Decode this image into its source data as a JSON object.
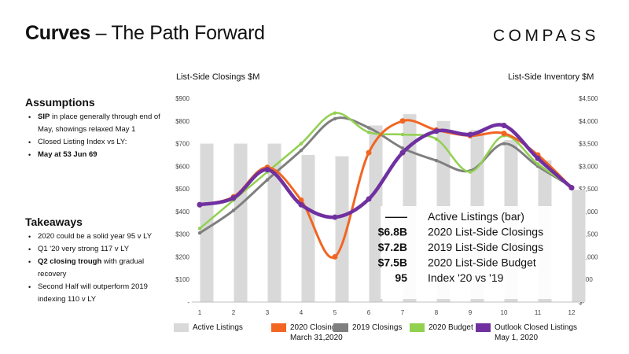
{
  "header": {
    "title_bold": "Curves",
    "title_rest": " – The Path Forward",
    "logo": "COMPASS"
  },
  "assumptions": {
    "heading": "Assumptions",
    "items": [
      {
        "bold": "SIP",
        "text": " in place generally through end of May, showings relaxed May 1"
      },
      {
        "bold": "",
        "text": "Closed Listing Index vs LY:"
      },
      {
        "bold": "May at 53 Jun 69",
        "text": ""
      }
    ]
  },
  "takeaways": {
    "heading": "Takeaways",
    "items": [
      {
        "bold": "",
        "text": "2020 could be a solid year 95 v LY"
      },
      {
        "bold": "",
        "text": "Q1 '20 very strong 117 v LY"
      },
      {
        "bold": "Q2 closing trough",
        "text": " with gradual recovery"
      },
      {
        "bold": "",
        "text": "Second Half will outperform 2019 indexing 110 v LY"
      }
    ]
  },
  "chart_data": {
    "type": "bar+line",
    "left_axis_title": "List-Side Closings $M",
    "right_axis_title": "List-Side Inventory $M",
    "x": [
      1,
      2,
      3,
      4,
      5,
      6,
      7,
      8,
      9,
      10,
      11,
      12
    ],
    "x_tick_labels": [
      "1",
      "2",
      "3",
      "4",
      "5",
      "6",
      "7",
      "8",
      "9",
      "10",
      "11",
      "12"
    ],
    "left_ticks": [
      "-",
      "$100",
      "$200",
      "$300",
      "$400",
      "$500",
      "$600",
      "$700",
      "$800",
      "$900"
    ],
    "left_ylim": [
      0,
      900
    ],
    "right_ticks": [
      "$-",
      "$500",
      "$1,000",
      "$1,500",
      "$2,000",
      "$2,500",
      "$3,000",
      "$3,500",
      "$4,000",
      "$4,500"
    ],
    "right_ylim": [
      0,
      4500
    ],
    "bars": {
      "name": "Active Listings",
      "axis": "right",
      "color": "#d9d9d9",
      "values": [
        3500,
        3500,
        3500,
        3250,
        3220,
        3900,
        4150,
        4000,
        3800,
        3580,
        3130,
        2480
      ]
    },
    "series": [
      {
        "name": "2019 Closings",
        "color": "#7f7f7f",
        "axis": "left",
        "values": [
          305,
          405,
          540,
          670,
          810,
          770,
          680,
          625,
          580,
          700,
          600,
          510
        ]
      },
      {
        "name": "2020 Budget",
        "color": "#92d050",
        "axis": "left",
        "values": [
          325,
          450,
          575,
          700,
          835,
          750,
          740,
          720,
          575,
          735,
          610,
          510
        ]
      },
      {
        "name": "2020 Closings",
        "color": "#f26522",
        "axis": "left",
        "markers": true,
        "values": [
          430,
          465,
          595,
          450,
          200,
          660,
          800,
          760,
          735,
          745,
          650,
          505
        ]
      },
      {
        "name": "Outlook Closed Listings",
        "color": "#7030a0",
        "axis": "left",
        "markers": true,
        "values": [
          430,
          460,
          585,
          430,
          375,
          455,
          660,
          755,
          740,
          780,
          635,
          505
        ]
      }
    ],
    "annotation_box": {
      "rows": [
        {
          "value": "——",
          "label": "Active Listings (bar)"
        },
        {
          "value": "$6.8B",
          "label": "2020 List-Side Closings"
        },
        {
          "value": "$7.2B",
          "label": "2019 List-Side Closings"
        },
        {
          "value": "$7.5B",
          "label": "2020 List-Side Budget"
        },
        {
          "value": "95",
          "label": "Index '20 vs '19"
        }
      ]
    },
    "legend": [
      {
        "label": "Active Listings",
        "sub": "",
        "color": "#d9d9d9"
      },
      {
        "label": "2020 Closings",
        "sub": "March 31,2020",
        "color": "#f26522"
      },
      {
        "label": "2019 Closings",
        "sub": "",
        "color": "#7f7f7f"
      },
      {
        "label": "2020 Budget",
        "sub": "",
        "color": "#92d050"
      },
      {
        "label": "Outlook Closed Listings",
        "sub": "May 1, 2020",
        "color": "#7030a0"
      }
    ]
  }
}
